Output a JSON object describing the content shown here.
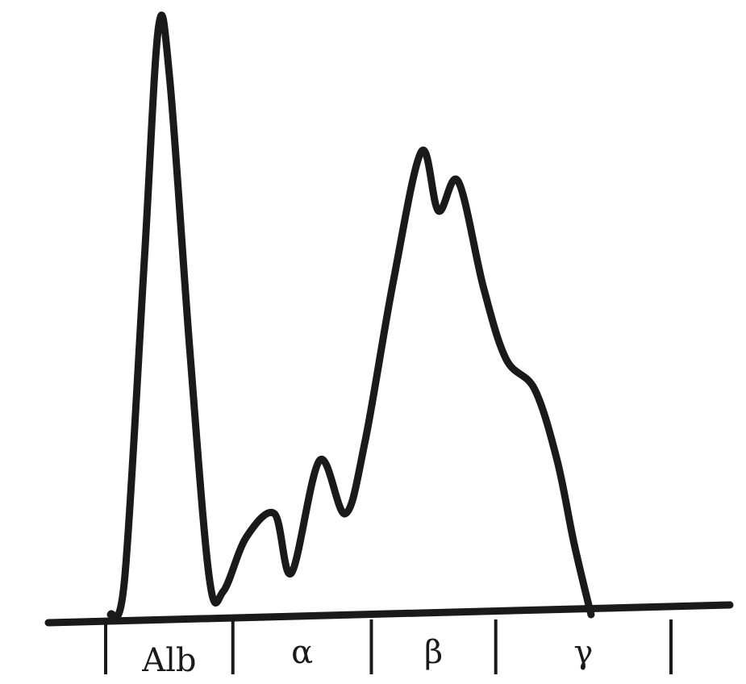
{
  "chart_data": {
    "type": "line",
    "title": "",
    "xlabel": "",
    "ylabel": "",
    "xlim": [
      0,
      100
    ],
    "ylim": [
      0,
      100
    ],
    "grid": false,
    "legend": "none",
    "line_color": "#1a1a1a",
    "regions": [
      {
        "label": "Alb",
        "x_start": 0,
        "x_end": 22.5
      },
      {
        "label": "α",
        "x_start": 22.5,
        "x_end": 47
      },
      {
        "label": "β",
        "x_start": 47,
        "x_end": 69
      },
      {
        "label": "γ",
        "x_start": 69,
        "x_end": 100
      }
    ],
    "series": [
      {
        "points": [
          [
            0,
            0
          ],
          [
            2.5,
            6
          ],
          [
            6,
            60
          ],
          [
            8.5,
            99
          ],
          [
            10.5,
            90
          ],
          [
            14,
            45
          ],
          [
            17.5,
            6
          ],
          [
            20,
            4
          ],
          [
            24,
            13
          ],
          [
            29,
            17
          ],
          [
            32,
            7
          ],
          [
            37,
            26
          ],
          [
            41.5,
            17
          ],
          [
            45,
            29
          ],
          [
            50,
            56
          ],
          [
            55,
            78
          ],
          [
            58,
            68
          ],
          [
            61.5,
            73
          ],
          [
            66,
            55
          ],
          [
            70,
            43
          ],
          [
            75,
            38
          ],
          [
            79,
            26
          ],
          [
            82,
            12
          ],
          [
            85,
            0
          ]
        ]
      }
    ]
  }
}
